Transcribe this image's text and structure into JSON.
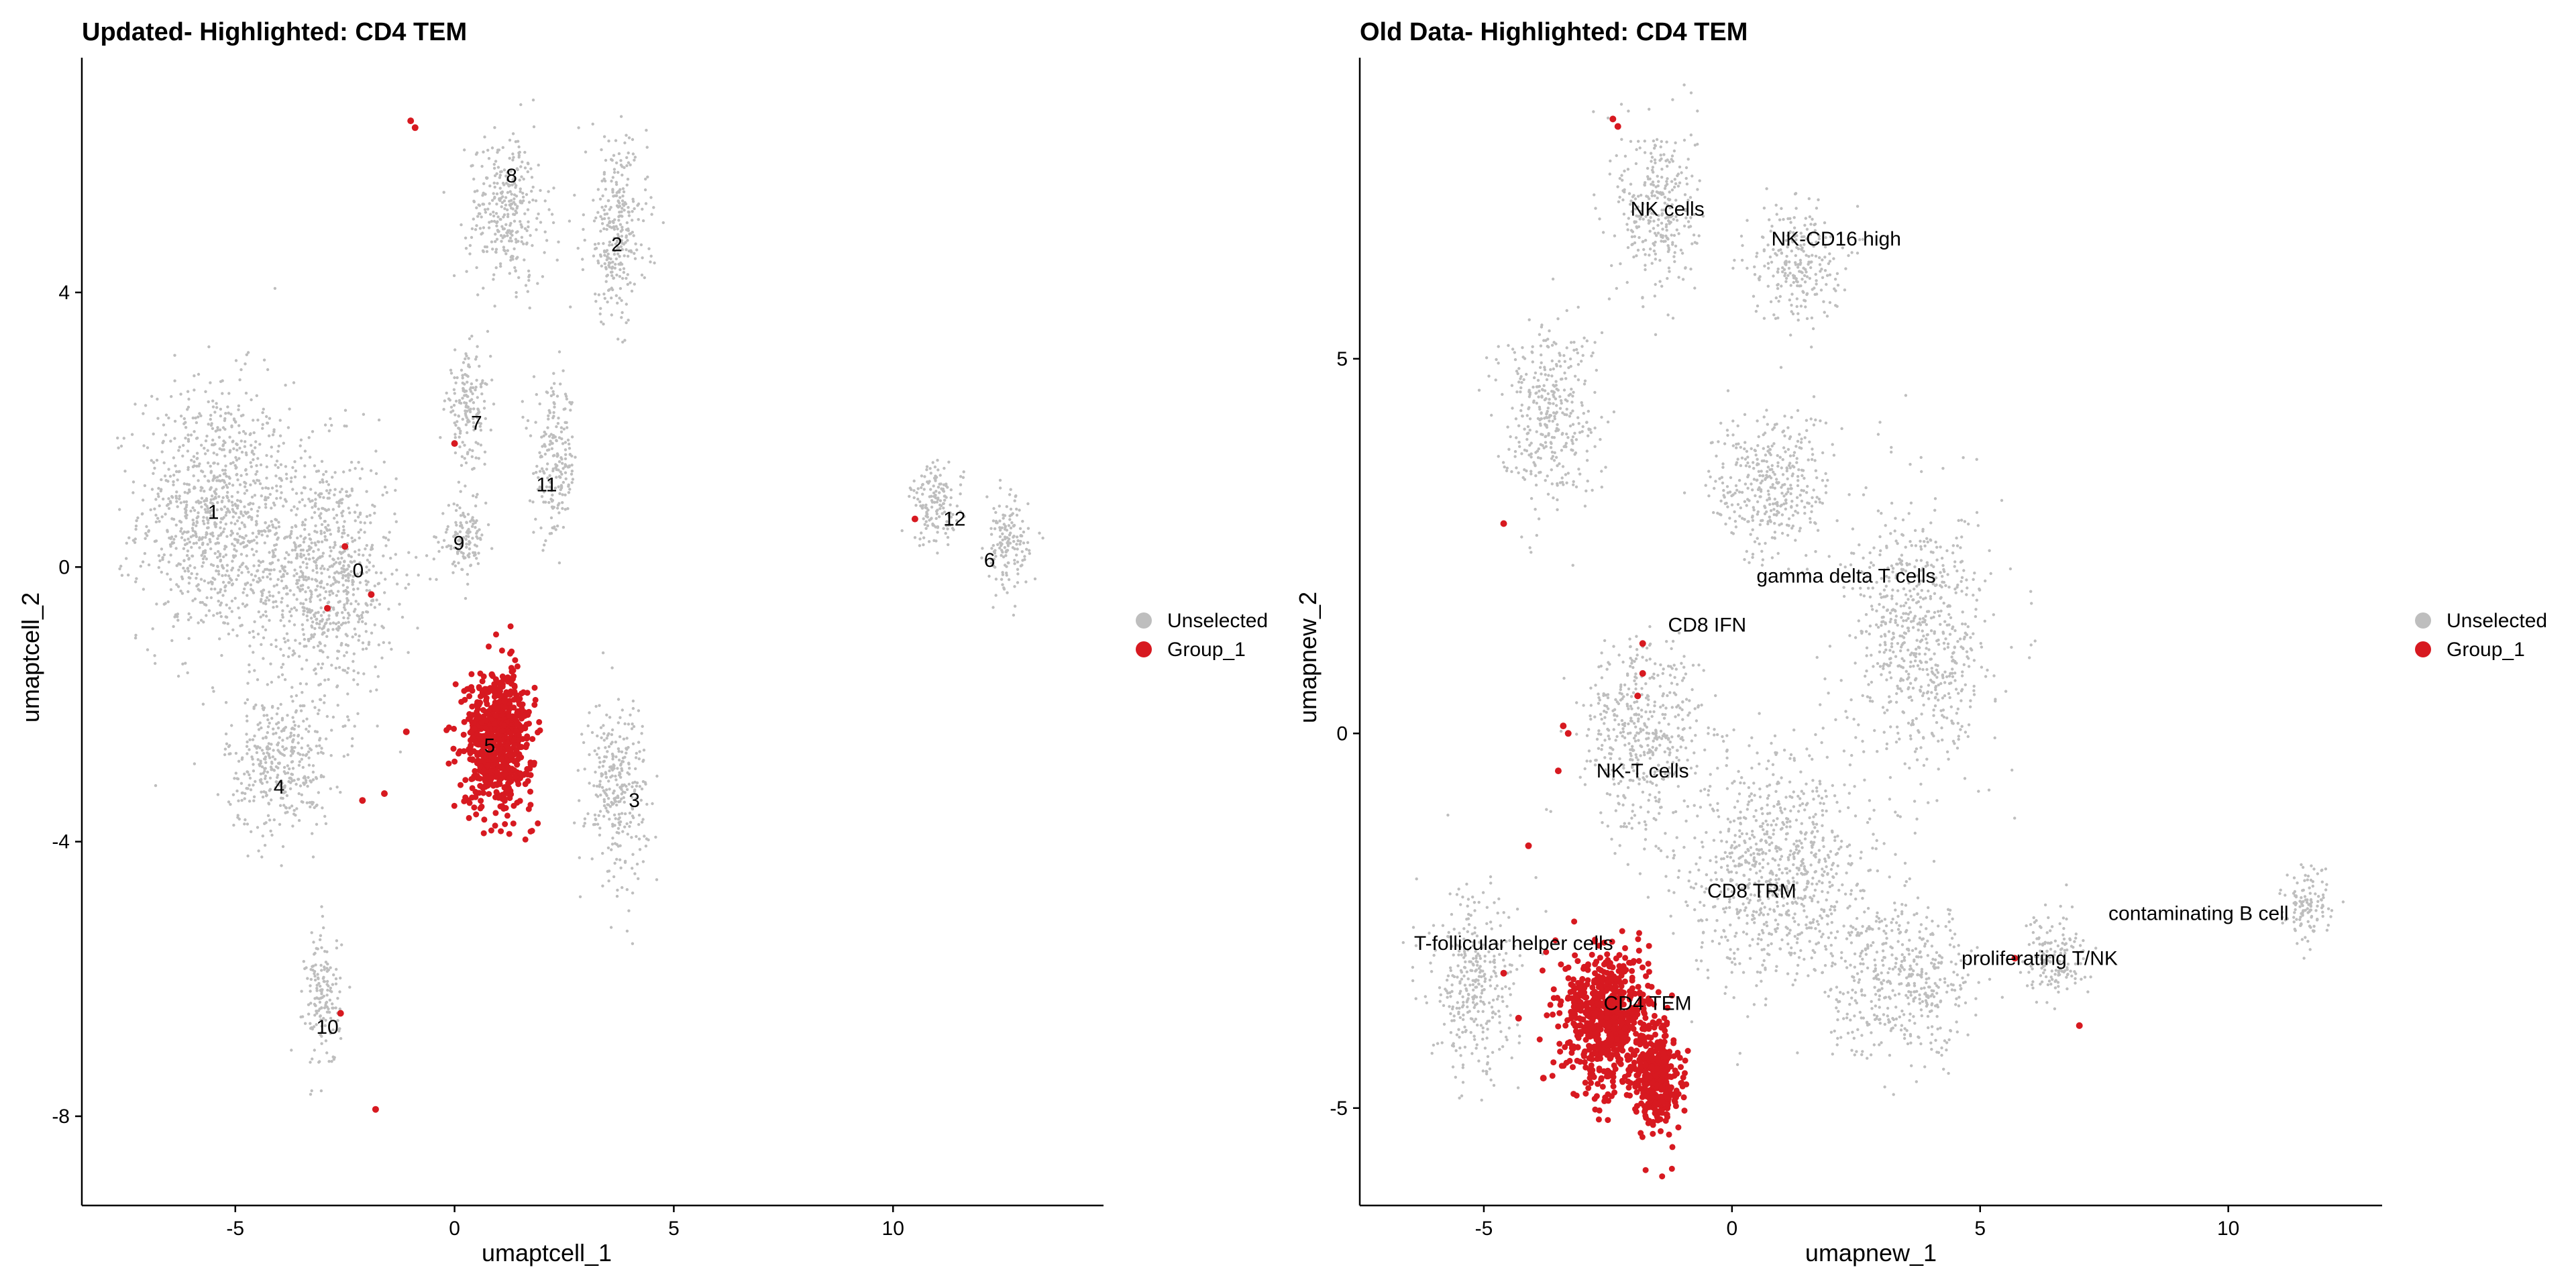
{
  "colors": {
    "unselected": "#BEBEBE",
    "highlight": "#D71920",
    "axis": "#000000"
  },
  "chart_data": [
    {
      "type": "scatter",
      "title": "Updated- Highlighted: CD4 TEM",
      "xlabel": "umaptcell_1",
      "ylabel": "umaptcell_2",
      "xlim": [
        -8.5,
        14.8
      ],
      "ylim": [
        -9.3,
        7.4
      ],
      "xticks": [
        -5,
        0,
        5,
        10
      ],
      "yticks": [
        -8,
        -4,
        0,
        4
      ],
      "legend_position": "right",
      "legend": [
        "Unselected",
        "Group_1"
      ],
      "series": [
        {
          "name": "Unselected",
          "clusters": [
            {
              "x": -5.5,
              "y": 0.8,
              "sx": 1.7,
              "sy": 1.9
            },
            {
              "x": -3.0,
              "y": -0.1,
              "sx": 1.7,
              "sy": 1.8
            },
            {
              "x": -4.0,
              "y": -2.9,
              "sx": 1.2,
              "sy": 1.0
            },
            {
              "x": 1.2,
              "y": 5.2,
              "sx": 0.9,
              "sy": 1.1
            },
            {
              "x": 3.7,
              "y": 4.9,
              "sx": 0.7,
              "sy": 1.3
            },
            {
              "x": 0.3,
              "y": 2.3,
              "sx": 0.5,
              "sy": 0.8
            },
            {
              "x": 2.3,
              "y": 1.5,
              "sx": 0.5,
              "sy": 1.1
            },
            {
              "x": 0.2,
              "y": 0.4,
              "sx": 0.5,
              "sy": 0.5
            },
            {
              "x": 3.7,
              "y": -3.2,
              "sx": 0.7,
              "sy": 1.3
            },
            {
              "x": -3.0,
              "y": -6.3,
              "sx": 0.4,
              "sy": 1.0
            },
            {
              "x": 11.0,
              "y": 0.9,
              "sx": 0.6,
              "sy": 0.6
            },
            {
              "x": 12.6,
              "y": 0.3,
              "sx": 0.5,
              "sy": 0.7
            }
          ]
        },
        {
          "name": "Group_1",
          "clusters": [
            {
              "x": 1.0,
              "y": -2.5,
              "sx": 0.7,
              "sy": 0.9
            }
          ],
          "points": [
            [
              -1.0,
              6.5
            ],
            [
              -0.9,
              6.4
            ],
            [
              0.0,
              1.8
            ],
            [
              -2.5,
              0.3
            ],
            [
              -2.9,
              -0.6
            ],
            [
              -1.9,
              -0.4
            ],
            [
              -1.1,
              -2.4
            ],
            [
              -2.1,
              -3.4
            ],
            [
              -1.6,
              -3.3
            ],
            [
              -2.6,
              -6.5
            ],
            [
              -1.8,
              -7.9
            ],
            [
              10.5,
              0.7
            ]
          ]
        }
      ],
      "annotations": [
        {
          "text": "8",
          "x": 1.3,
          "y": 5.7
        },
        {
          "text": "2",
          "x": 3.7,
          "y": 4.7
        },
        {
          "text": "7",
          "x": 0.5,
          "y": 2.1
        },
        {
          "text": "11",
          "x": 2.1,
          "y": 1.2
        },
        {
          "text": "1",
          "x": -5.5,
          "y": 0.8
        },
        {
          "text": "9",
          "x": 0.1,
          "y": 0.35
        },
        {
          "text": "0",
          "x": -2.2,
          "y": -0.05
        },
        {
          "text": "12",
          "x": 11.4,
          "y": 0.7
        },
        {
          "text": "6",
          "x": 12.2,
          "y": 0.1
        },
        {
          "text": "5",
          "x": 0.8,
          "y": -2.6
        },
        {
          "text": "4",
          "x": -4.0,
          "y": -3.2
        },
        {
          "text": "3",
          "x": 4.1,
          "y": -3.4
        },
        {
          "text": "10",
          "x": -2.9,
          "y": -6.7
        }
      ]
    },
    {
      "type": "scatter",
      "title": "Old Data- Highlighted: CD4 TEM",
      "xlabel": "umapnew_1",
      "ylabel": "umapnew_2",
      "xlim": [
        -7.5,
        13.1
      ],
      "ylim": [
        -6.3,
        9.0
      ],
      "xticks": [
        -5,
        0,
        5,
        10
      ],
      "yticks": [
        -5,
        0,
        5
      ],
      "legend_position": "right",
      "legend": [
        "Unselected",
        "Group_1"
      ],
      "series": [
        {
          "name": "Unselected",
          "clusters": [
            {
              "x": -1.5,
              "y": 7.0,
              "sx": 0.8,
              "sy": 1.2
            },
            {
              "x": 1.3,
              "y": 6.3,
              "sx": 0.9,
              "sy": 0.8
            },
            {
              "x": -3.7,
              "y": 4.3,
              "sx": 1.0,
              "sy": 1.2
            },
            {
              "x": 0.8,
              "y": 3.3,
              "sx": 1.2,
              "sy": 1.0
            },
            {
              "x": 3.8,
              "y": 1.3,
              "sx": 1.4,
              "sy": 1.7
            },
            {
              "x": 1.0,
              "y": -1.8,
              "sx": 1.9,
              "sy": 1.6
            },
            {
              "x": -1.8,
              "y": 0.0,
              "sx": 1.2,
              "sy": 1.3
            },
            {
              "x": -5.2,
              "y": -3.4,
              "sx": 0.9,
              "sy": 1.2
            },
            {
              "x": 3.5,
              "y": -3.3,
              "sx": 1.5,
              "sy": 1.0
            },
            {
              "x": 6.5,
              "y": -3.0,
              "sx": 0.6,
              "sy": 0.6
            },
            {
              "x": 11.6,
              "y": -2.3,
              "sx": 0.5,
              "sy": 0.5
            }
          ]
        },
        {
          "name": "Group_1",
          "clusters": [
            {
              "x": -2.5,
              "y": -3.8,
              "sx": 0.8,
              "sy": 0.8
            },
            {
              "x": -1.5,
              "y": -4.6,
              "sx": 0.4,
              "sy": 0.6
            }
          ],
          "points": [
            [
              -2.4,
              8.2
            ],
            [
              -2.3,
              8.1
            ],
            [
              -4.6,
              2.8
            ],
            [
              -1.8,
              1.2
            ],
            [
              -1.8,
              0.8
            ],
            [
              -1.9,
              0.5
            ],
            [
              -3.4,
              0.1
            ],
            [
              -3.3,
              0.0
            ],
            [
              -3.5,
              -0.5
            ],
            [
              -4.1,
              -1.5
            ],
            [
              -4.6,
              -3.2
            ],
            [
              -4.3,
              -3.8
            ],
            [
              -3.8,
              -4.6
            ],
            [
              7.0,
              -3.9
            ],
            [
              5.7,
              -3.0
            ]
          ]
        }
      ],
      "annotations": [
        {
          "text": "NK cells",
          "x": -1.3,
          "y": 7.0
        },
        {
          "text": "NK-CD16 high",
          "x": 2.1,
          "y": 6.6
        },
        {
          "text": "gamma delta T cells",
          "x": 2.3,
          "y": 2.1
        },
        {
          "text": "CD8 IFN",
          "x": -0.5,
          "y": 1.45
        },
        {
          "text": "NK-T cells",
          "x": -1.8,
          "y": -0.5
        },
        {
          "text": "CD8 TRM",
          "x": 0.4,
          "y": -2.1
        },
        {
          "text": "contaminating  B cell",
          "x": 9.4,
          "y": -2.4
        },
        {
          "text": "T-follicular helper cells",
          "x": -4.4,
          "y": -2.8
        },
        {
          "text": "proliferating T/NK",
          "x": 6.2,
          "y": -3.0
        },
        {
          "text": "CD4 TEM",
          "x": -1.7,
          "y": -3.6
        }
      ]
    }
  ]
}
